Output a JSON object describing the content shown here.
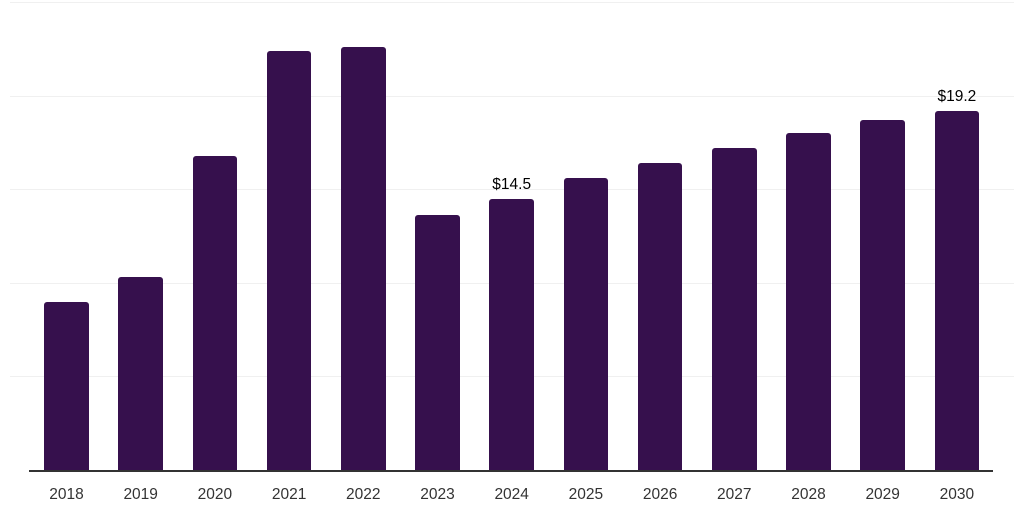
{
  "chart_data": {
    "type": "bar",
    "title": "",
    "xlabel": "",
    "ylabel": "",
    "categories": [
      "2018",
      "2019",
      "2020",
      "2021",
      "2022",
      "2023",
      "2024",
      "2025",
      "2026",
      "2027",
      "2028",
      "2029",
      "2030"
    ],
    "values": [
      9.0,
      10.3,
      16.8,
      22.4,
      22.6,
      13.6,
      14.5,
      15.6,
      16.4,
      17.2,
      18.0,
      18.7,
      19.2
    ],
    "value_labels": [
      "",
      "",
      "",
      "",
      "",
      "",
      "$14.5",
      "",
      "",
      "",
      "",
      "",
      "$19.2"
    ],
    "ylim": [
      0,
      25
    ],
    "grid": true,
    "gridline_step": 5,
    "legend": "none",
    "colors": {
      "bar": "#36104D",
      "grid": "#f0f0f0",
      "axis": "#333333",
      "tick_label": "#333333",
      "value_label": "#000000",
      "background": "#ffffff"
    }
  }
}
